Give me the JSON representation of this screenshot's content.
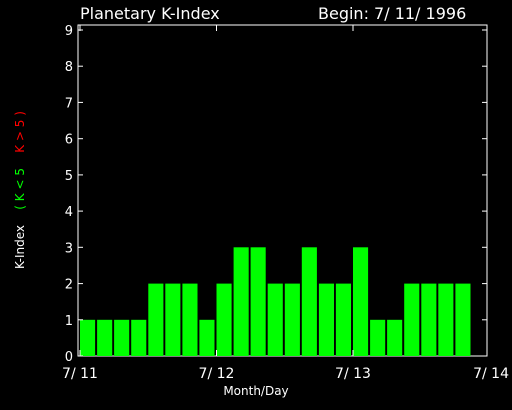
{
  "header": {
    "left": "Planetary K-Index",
    "right": "Begin: 7/ 11/ 1996"
  },
  "chart_data": {
    "type": "bar",
    "title": "Planetary K-Index",
    "xlabel": "Month/Day",
    "ylabel_parts": [
      {
        "text": "K-Index",
        "color": "#ffffff"
      },
      {
        "text": "( K < 5",
        "color": "#00ff00"
      },
      {
        "text": "K > 5 )",
        "color": "#ff0000"
      }
    ],
    "ylim": [
      0,
      9
    ],
    "yticks": [
      "0",
      "1",
      "2",
      "3",
      "4",
      "5",
      "6",
      "7",
      "8",
      "9"
    ],
    "xticks": [
      "7/ 11",
      "7/ 12",
      "7/ 13",
      "7/ 14"
    ],
    "bar_color": "#00ff00",
    "high_color": "#ff0000",
    "values": [
      1,
      1,
      1,
      1,
      2,
      2,
      2,
      1,
      2,
      3,
      3,
      2,
      2,
      3,
      2,
      2,
      3,
      1,
      1,
      2,
      2,
      2,
      2
    ]
  }
}
